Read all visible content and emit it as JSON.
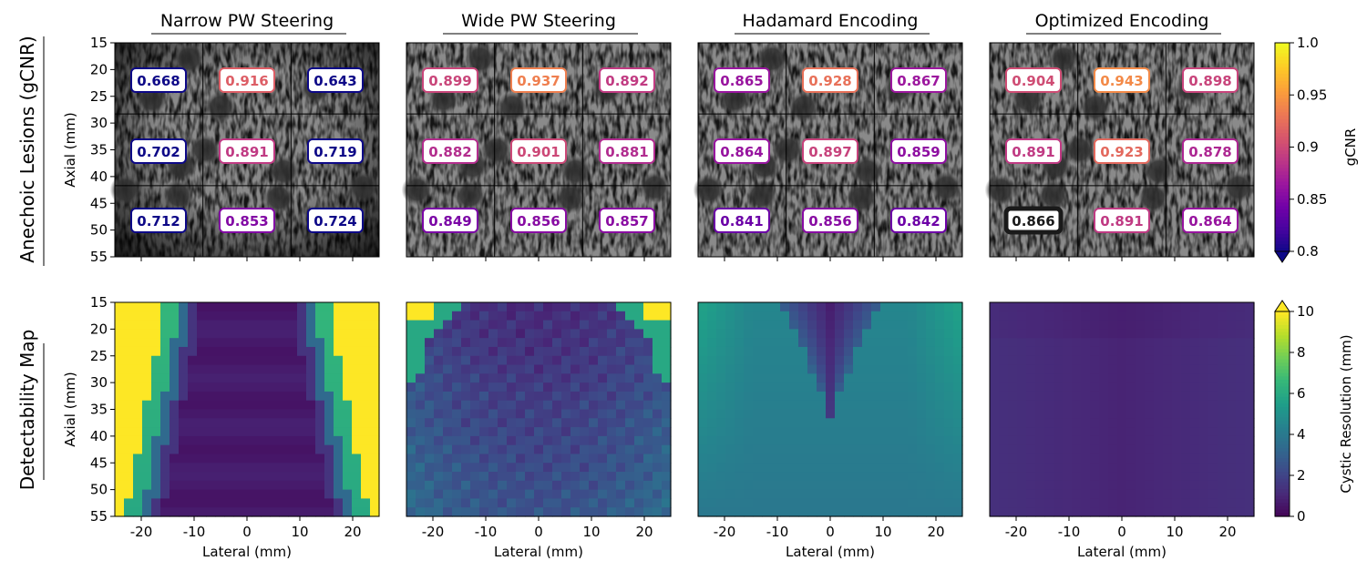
{
  "figure": {
    "row_labels": [
      "Anechoic Lesions (gCNR)",
      "Detectability Map"
    ],
    "panel_titles": [
      "Narrow PW Steering",
      "Wide PW Steering",
      "Hadamard Encoding",
      "Optimized Encoding"
    ],
    "y_axis_label": "Axial (mm)",
    "x_axis_label": "Lateral (mm)"
  },
  "chart_data": [
    {
      "type": "heatmap",
      "name": "anechoic-lesions-gcnr",
      "title": "Anechoic Lesions (gCNR)",
      "xlabel": "Lateral (mm)",
      "ylabel": "Axial (mm)",
      "xlim": [
        -25,
        25
      ],
      "ylim": [
        55,
        15
      ],
      "y_ticks": [
        "15",
        "20",
        "25",
        "30",
        "35",
        "40",
        "45",
        "50",
        "55"
      ],
      "grid_columns_mm": [
        -25,
        -8.33,
        8.33,
        25
      ],
      "grid_rows_mm": [
        15,
        28.3,
        41.7,
        55
      ],
      "panels": [
        {
          "title": "Narrow PW Steering",
          "gcnr": [
            [
              "0.668",
              "0.916",
              "0.643"
            ],
            [
              "0.702",
              "0.891",
              "0.719"
            ],
            [
              "0.712",
              "0.853",
              "0.724"
            ]
          ]
        },
        {
          "title": "Wide PW Steering",
          "gcnr": [
            [
              "0.899",
              "0.937",
              "0.892"
            ],
            [
              "0.882",
              "0.901",
              "0.881"
            ],
            [
              "0.849",
              "0.856",
              "0.857"
            ]
          ]
        },
        {
          "title": "Hadamard Encoding",
          "gcnr": [
            [
              "0.865",
              "0.928",
              "0.867"
            ],
            [
              "0.864",
              "0.897",
              "0.859"
            ],
            [
              "0.841",
              "0.856",
              "0.842"
            ]
          ]
        },
        {
          "title": "Optimized Encoding",
          "gcnr": [
            [
              "0.904",
              "0.943",
              "0.898"
            ],
            [
              "0.891",
              "0.923",
              "0.878"
            ],
            [
              "0.866",
              "0.891",
              "0.864"
            ]
          ],
          "highlighted_cell": [
            2,
            0
          ]
        }
      ],
      "lesion_centers_mm": [
        [
          -11,
          18
        ],
        [
          -18,
          25.5
        ],
        [
          -5,
          27
        ],
        [
          13,
          23.5
        ],
        [
          -8,
          35
        ],
        [
          -12.5,
          38
        ],
        [
          7,
          39
        ],
        [
          18,
          36
        ],
        [
          -23,
          42.5
        ],
        [
          -13,
          43.5
        ],
        [
          6,
          44
        ],
        [
          22,
          42
        ]
      ],
      "colorbar": {
        "label": "gCNR",
        "colormap": "plasma",
        "range": [
          0.8,
          1.0
        ],
        "ticks": [
          "0.8",
          "0.85",
          "0.9",
          "0.95",
          "1.0"
        ],
        "extend": "min"
      }
    },
    {
      "type": "heatmap",
      "name": "detectability-map",
      "title": "Detectability Map",
      "xlabel": "Lateral (mm)",
      "ylabel": "Axial (mm)",
      "xlim": [
        -25,
        25
      ],
      "ylim": [
        55,
        15
      ],
      "x_ticks": [
        "-20",
        "-10",
        "0",
        "10",
        "20"
      ],
      "y_ticks": [
        "15",
        "20",
        "25",
        "30",
        "35",
        "40",
        "45",
        "50",
        "55"
      ],
      "panels": [
        {
          "title": "Narrow PW Steering",
          "model": "narrow"
        },
        {
          "title": "Wide PW Steering",
          "model": "wide"
        },
        {
          "title": "Hadamard Encoding",
          "model": "hadamard"
        },
        {
          "title": "Optimized Encoding",
          "model": "optimized"
        }
      ],
      "colorbar": {
        "label": "Cystic Resolution (mm)",
        "colormap": "viridis",
        "range": [
          0,
          10
        ],
        "ticks": [
          "0",
          "2",
          "4",
          "6",
          "8",
          "10"
        ],
        "extend": "max"
      }
    }
  ],
  "colors": {
    "plasma_stops": [
      "#0d0887",
      "#46039f",
      "#7201a8",
      "#9c179e",
      "#bd3786",
      "#d8576b",
      "#ed7953",
      "#fb9f3a",
      "#fdca26",
      "#f0f921"
    ],
    "viridis_stops": [
      "#440154",
      "#482878",
      "#3e4989",
      "#31688e",
      "#26828e",
      "#1f9e89",
      "#35b779",
      "#6ece58",
      "#b5de2b",
      "#fde725"
    ],
    "highlight_border": "#1a1a1a"
  }
}
